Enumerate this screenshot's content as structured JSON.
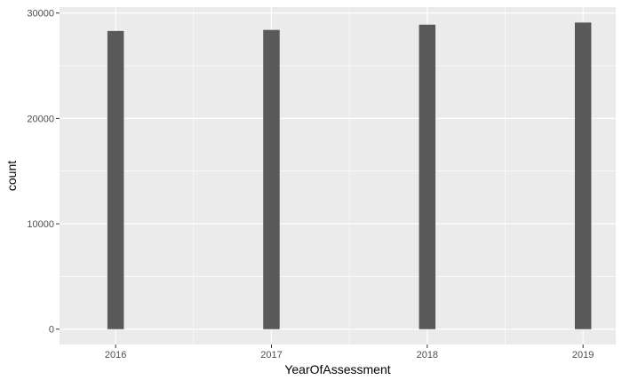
{
  "chart_data": {
    "type": "bar",
    "title": "",
    "xlabel": "YearOfAssessment",
    "ylabel": "count",
    "categories": [
      "2016",
      "2017",
      "2018",
      "2019"
    ],
    "x": [
      2016,
      2017,
      2018,
      2019
    ],
    "values": [
      28300,
      28400,
      28900,
      29100
    ],
    "xlim": [
      2015.64,
      2019.21
    ],
    "ylim": [
      -1455,
      30566
    ],
    "yticks": [
      0,
      10000,
      20000,
      30000
    ],
    "ytick_labels": [
      "0",
      "10000",
      "20000",
      "30000"
    ],
    "grid": true,
    "legend": "none",
    "colors": {
      "panel_background": "#ebebeb",
      "grid_major": "#ffffff",
      "bar_fill": "#595959",
      "tick_text": "#4d4d4d",
      "axis_title": "#000000"
    }
  }
}
